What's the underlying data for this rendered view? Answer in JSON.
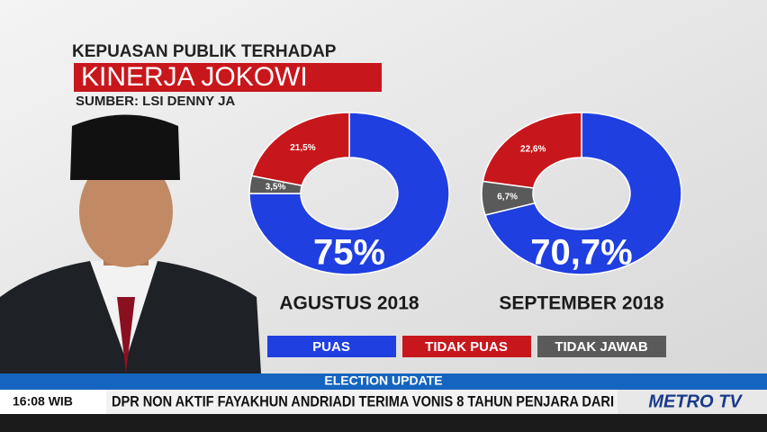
{
  "header": {
    "title_line1": "KEPUASAN PUBLIK TERHADAP",
    "title_line2": "KINERJA JOKOWI",
    "source": "SUMBER: LSI DENNY JA"
  },
  "legend": [
    {
      "name": "PUAS",
      "color": "#1f3fe0"
    },
    {
      "name": "TIDAK PUAS",
      "color": "#c8171c"
    },
    {
      "name": "TIDAK JAWAB",
      "color": "#5a5a5a"
    }
  ],
  "chart_data": [
    {
      "type": "donut",
      "x_label": "AGUSTUS 2018",
      "values": [
        75,
        21.5,
        3.5
      ],
      "value_labels": [
        "75%",
        "21,5%",
        "3,5%"
      ]
    },
    {
      "type": "donut",
      "x_label": "SEPTEMBER 2018",
      "values": [
        70.7,
        22.6,
        6.7
      ],
      "value_labels": [
        "70,7%",
        "22,6%",
        "6,7%"
      ]
    }
  ],
  "banner": "ELECTION UPDATE",
  "ticker": {
    "time": "16:08 WIB",
    "text": "DPR NON AKTIF FAYAKHUN ANDRIADI TERIMA VONIS 8 TAHUN PENJARA DARI",
    "channel": "METRO TV"
  }
}
